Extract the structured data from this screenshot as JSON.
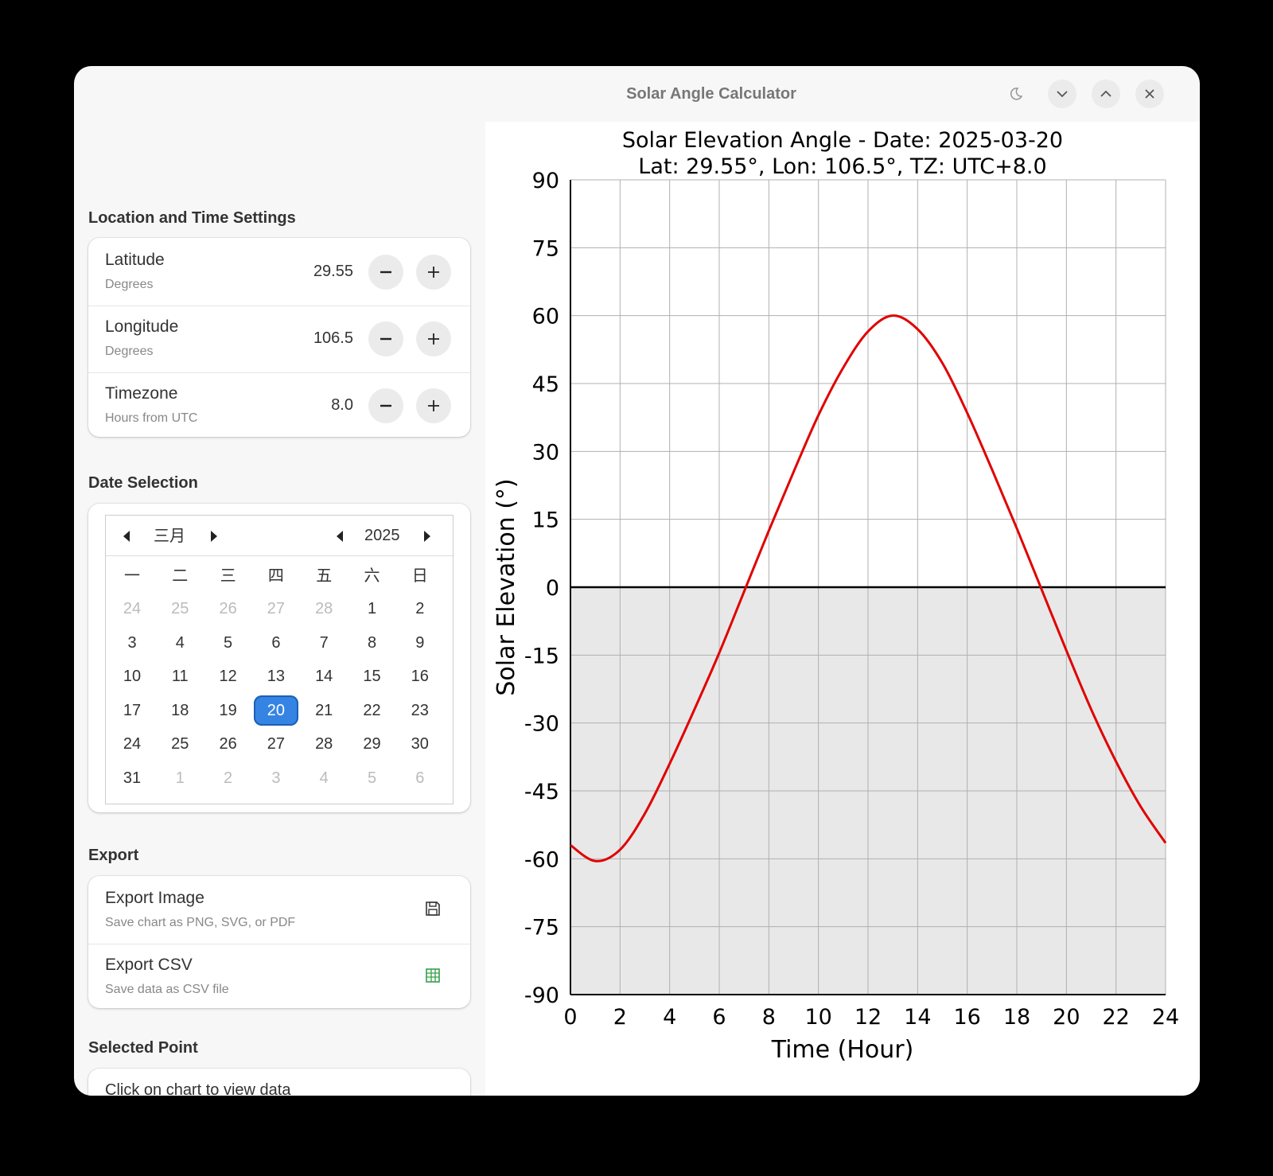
{
  "window": {
    "title": "Solar Angle Calculator"
  },
  "titlebar_buttons": {
    "night": "moon-icon",
    "minimize": "chevron-down-icon",
    "maximize": "chevron-up-icon",
    "close": "close-icon"
  },
  "location": {
    "section_title": "Location and Time Settings",
    "rows": [
      {
        "label": "Latitude",
        "sub": "Degrees",
        "value": "29.55"
      },
      {
        "label": "Longitude",
        "sub": "Degrees",
        "value": "106.5"
      },
      {
        "label": "Timezone",
        "sub": "Hours from UTC",
        "value": "8.0"
      }
    ]
  },
  "date": {
    "section_title": "Date Selection",
    "month": "三月",
    "year": "2025",
    "weekdays": [
      "一",
      "二",
      "三",
      "四",
      "五",
      "六",
      "日"
    ],
    "weeks": [
      [
        "24",
        "25",
        "26",
        "27",
        "28",
        "1",
        "2"
      ],
      [
        "3",
        "4",
        "5",
        "6",
        "7",
        "8",
        "9"
      ],
      [
        "10",
        "11",
        "12",
        "13",
        "14",
        "15",
        "16"
      ],
      [
        "17",
        "18",
        "19",
        "20",
        "21",
        "22",
        "23"
      ],
      [
        "24",
        "25",
        "26",
        "27",
        "28",
        "29",
        "30"
      ],
      [
        "31",
        "1",
        "2",
        "3",
        "4",
        "5",
        "6"
      ]
    ],
    "selected": "20"
  },
  "export": {
    "section_title": "Export",
    "image_label": "Export Image",
    "image_sub": "Save chart as PNG, SVG, or PDF",
    "csv_label": "Export CSV",
    "csv_sub": "Save data as CSV file",
    "colors": {
      "csv_icon": "#33a04a",
      "image_icon": "#333333"
    }
  },
  "selected_point": {
    "section_title": "Selected Point",
    "text": "Click on chart to view data"
  },
  "colors": {
    "accent": "#3584e4",
    "series": "#e00000",
    "below_horizon": "#e8e8e8"
  },
  "chart_data": {
    "type": "line",
    "title": "Solar Elevation Angle - Date: 2025-03-20",
    "subtitle": "Lat: 29.55°, Lon: 106.5°, TZ: UTC+8.0",
    "xlabel": "Time (Hour)",
    "ylabel": "Solar Elevation (°)",
    "xlim": [
      0,
      24
    ],
    "ylim": [
      -90,
      90
    ],
    "xticks": [
      "0",
      "2",
      "4",
      "6",
      "8",
      "10",
      "12",
      "14",
      "16",
      "18",
      "20",
      "22",
      "24"
    ],
    "yticks": [
      "90",
      "75",
      "60",
      "45",
      "30",
      "15",
      "0",
      "-15",
      "-30",
      "-45",
      "-60",
      "-75",
      "-90"
    ],
    "grid": true,
    "series": [
      {
        "x": [
          0,
          1,
          2,
          3,
          4,
          5,
          6,
          7,
          8,
          9,
          10,
          11,
          12,
          13,
          14,
          15,
          16,
          17,
          18,
          19,
          20,
          21,
          22,
          23,
          24
        ],
        "values": [
          -57,
          -60.5,
          -58,
          -50,
          -39,
          -27,
          -14.5,
          -1,
          12.5,
          25.5,
          38,
          48.5,
          56.5,
          60,
          57,
          49.5,
          38.5,
          26,
          13,
          -0.5,
          -14,
          -27,
          -38.5,
          -48.5,
          -56.5
        ]
      }
    ]
  }
}
